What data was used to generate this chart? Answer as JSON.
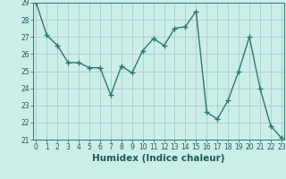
{
  "x": [
    0,
    1,
    2,
    3,
    4,
    5,
    6,
    7,
    8,
    9,
    10,
    11,
    12,
    13,
    14,
    15,
    16,
    17,
    18,
    19,
    20,
    21,
    22,
    23
  ],
  "y": [
    29.0,
    27.1,
    26.5,
    25.5,
    25.5,
    25.2,
    25.2,
    23.6,
    25.3,
    24.9,
    26.2,
    26.9,
    26.5,
    27.5,
    27.6,
    28.5,
    22.6,
    22.2,
    23.3,
    25.0,
    27.0,
    24.0,
    21.8,
    21.1
  ],
  "xlabel": "Humidex (Indice chaleur)",
  "ylim": [
    21,
    29
  ],
  "yticks": [
    21,
    22,
    23,
    24,
    25,
    26,
    27,
    28,
    29
  ],
  "xticks": [
    0,
    1,
    2,
    3,
    4,
    5,
    6,
    7,
    8,
    9,
    10,
    11,
    12,
    13,
    14,
    15,
    16,
    17,
    18,
    19,
    20,
    21,
    22,
    23
  ],
  "line_color": "#2a7a6e",
  "marker_color": "#2a7a6e",
  "bg_color": "#cceee8",
  "grid_color": "#aacccc",
  "axis_color": "#2a7a6e",
  "text_color": "#1a5c52",
  "tick_fontsize": 5.5,
  "xlabel_fontsize": 7.5
}
